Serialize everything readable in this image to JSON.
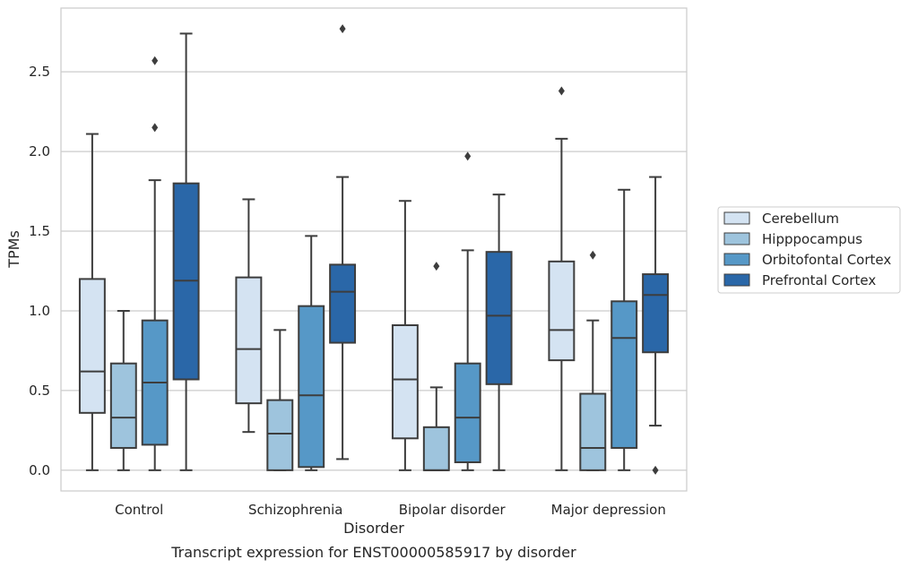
{
  "chart_data": {
    "type": "box",
    "caption": "Transcript expression for ENST00000585917 by disorder",
    "xlabel": "Disorder",
    "ylabel": "TPMs",
    "ylim": [
      -0.13,
      2.9
    ],
    "yticks": [
      0.0,
      0.5,
      1.0,
      1.5,
      2.0,
      2.5
    ],
    "ytick_labels": [
      "0.0",
      "0.5",
      "1.0",
      "1.5",
      "2.0",
      "2.5"
    ],
    "grid": "horizontal",
    "legend_position": "right",
    "categories": [
      "Control",
      "Schizophrenia",
      "Bipolar disorder",
      "Major depression"
    ],
    "series": [
      {
        "name": "Cerebellum",
        "color": "#d4e3f2",
        "boxes": [
          {
            "whisker_low": 0.0,
            "q1": 0.36,
            "median": 0.62,
            "q3": 1.2,
            "whisker_high": 2.11,
            "outliers": []
          },
          {
            "whisker_low": 0.24,
            "q1": 0.42,
            "median": 0.76,
            "q3": 1.21,
            "whisker_high": 1.7,
            "outliers": []
          },
          {
            "whisker_low": 0.0,
            "q1": 0.2,
            "median": 0.57,
            "q3": 0.91,
            "whisker_high": 1.69,
            "outliers": []
          },
          {
            "whisker_low": 0.0,
            "q1": 0.69,
            "median": 0.88,
            "q3": 1.31,
            "whisker_high": 2.08,
            "outliers": [
              2.38
            ]
          }
        ]
      },
      {
        "name": "Hipppocampus",
        "color": "#9ec4dd",
        "boxes": [
          {
            "whisker_low": 0.0,
            "q1": 0.14,
            "median": 0.33,
            "q3": 0.67,
            "whisker_high": 1.0,
            "outliers": []
          },
          {
            "whisker_low": 0.0,
            "q1": 0.0,
            "median": 0.23,
            "q3": 0.44,
            "whisker_high": 0.88,
            "outliers": []
          },
          {
            "whisker_low": 0.0,
            "q1": 0.0,
            "median": 0.0,
            "q3": 0.27,
            "whisker_high": 0.52,
            "outliers": [
              1.28
            ]
          },
          {
            "whisker_low": 0.0,
            "q1": 0.0,
            "median": 0.14,
            "q3": 0.48,
            "whisker_high": 0.94,
            "outliers": [
              1.35
            ]
          }
        ]
      },
      {
        "name": "Orbitofontal Cortex",
        "color": "#5698c7",
        "boxes": [
          {
            "whisker_low": 0.0,
            "q1": 0.16,
            "median": 0.55,
            "q3": 0.94,
            "whisker_high": 1.82,
            "outliers": [
              2.15,
              2.57
            ]
          },
          {
            "whisker_low": 0.0,
            "q1": 0.02,
            "median": 0.47,
            "q3": 1.03,
            "whisker_high": 1.47,
            "outliers": []
          },
          {
            "whisker_low": 0.0,
            "q1": 0.05,
            "median": 0.33,
            "q3": 0.67,
            "whisker_high": 1.38,
            "outliers": [
              1.97
            ]
          },
          {
            "whisker_low": 0.0,
            "q1": 0.14,
            "median": 0.83,
            "q3": 1.06,
            "whisker_high": 1.76,
            "outliers": []
          }
        ]
      },
      {
        "name": "Prefrontal Cortex",
        "color": "#2a67a8",
        "boxes": [
          {
            "whisker_low": 0.0,
            "q1": 0.57,
            "median": 1.19,
            "q3": 1.8,
            "whisker_high": 2.74,
            "outliers": []
          },
          {
            "whisker_low": 0.07,
            "q1": 0.8,
            "median": 1.12,
            "q3": 1.29,
            "whisker_high": 1.84,
            "outliers": [
              2.77
            ]
          },
          {
            "whisker_low": 0.0,
            "q1": 0.54,
            "median": 0.97,
            "q3": 1.37,
            "whisker_high": 1.73,
            "outliers": []
          },
          {
            "whisker_low": 0.28,
            "q1": 0.74,
            "median": 1.1,
            "q3": 1.23,
            "whisker_high": 1.84,
            "outliers": [
              0.0
            ]
          }
        ]
      }
    ]
  }
}
